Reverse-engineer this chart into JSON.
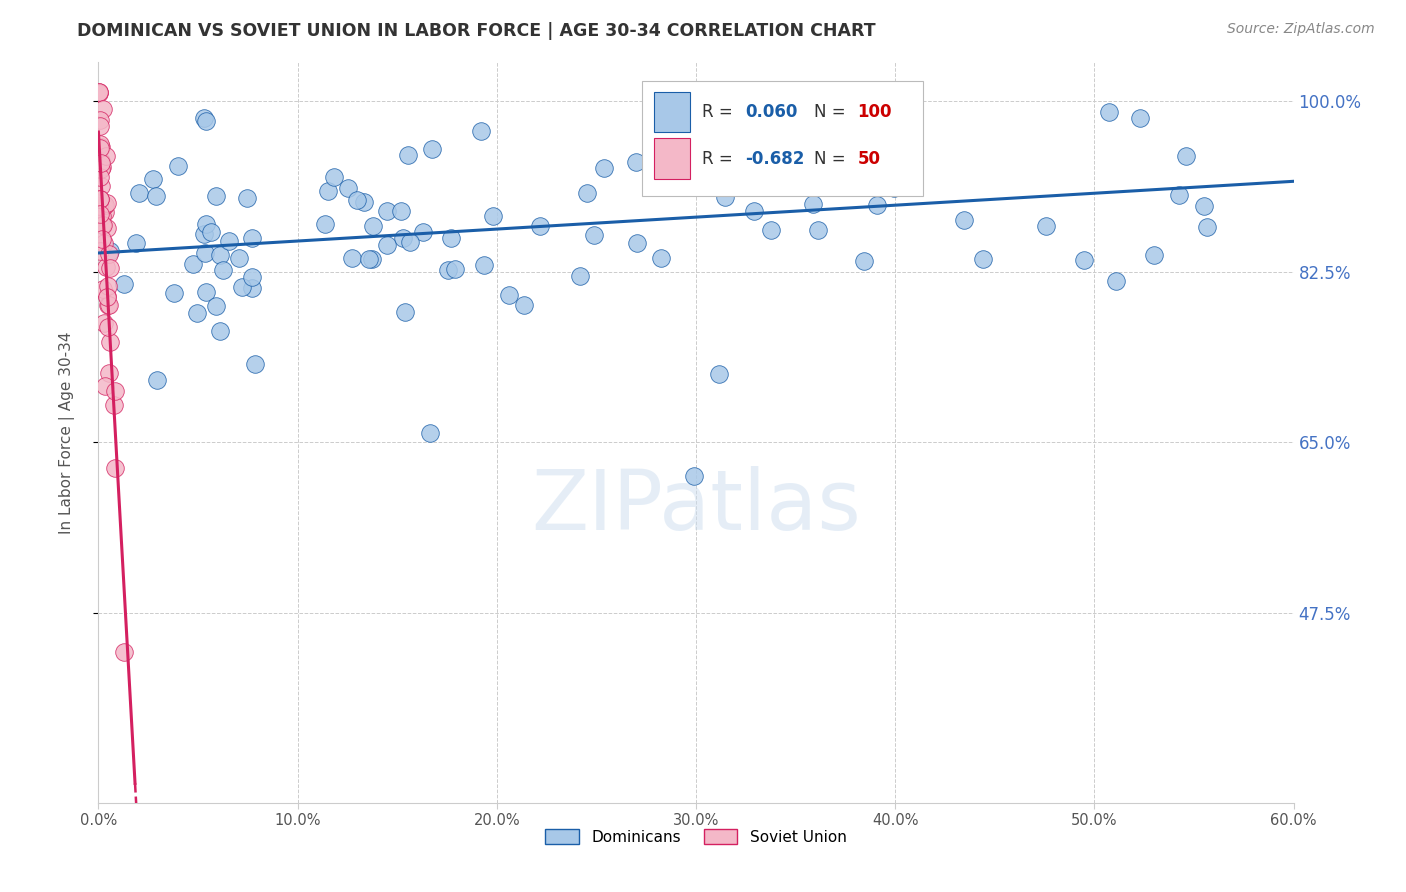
{
  "title": "DOMINICAN VS SOVIET UNION IN LABOR FORCE | AGE 30-34 CORRELATION CHART",
  "source": "Source: ZipAtlas.com",
  "ylabel": "In Labor Force | Age 30-34",
  "xlim": [
    0.0,
    0.6
  ],
  "ylim": [
    0.28,
    1.04
  ],
  "xtick_labels": [
    "0.0%",
    "10.0%",
    "20.0%",
    "30.0%",
    "40.0%",
    "50.0%",
    "60.0%"
  ],
  "xtick_values": [
    0.0,
    0.1,
    0.2,
    0.3,
    0.4,
    0.5,
    0.6
  ],
  "ytick_labels": [
    "100.0%",
    "82.5%",
    "65.0%",
    "47.5%"
  ],
  "ytick_values": [
    1.0,
    0.825,
    0.65,
    0.475
  ],
  "blue_R": 0.06,
  "blue_N": 100,
  "pink_R": -0.682,
  "pink_N": 50,
  "blue_color": "#a8c8e8",
  "pink_color": "#f4b8c8",
  "blue_line_color": "#1a5ea8",
  "pink_line_color": "#d42060",
  "legend_blue_label": "Dominicans",
  "legend_pink_label": "Soviet Union",
  "watermark": "ZIPatlas",
  "background_color": "#ffffff",
  "grid_color": "#cccccc",
  "title_color": "#333333",
  "ytick_color": "#4472c4",
  "source_color": "#888888",
  "text_color_dark": "#333333",
  "legend_val_color": "#1a5ea8",
  "legend_N_color": "#cc0000"
}
